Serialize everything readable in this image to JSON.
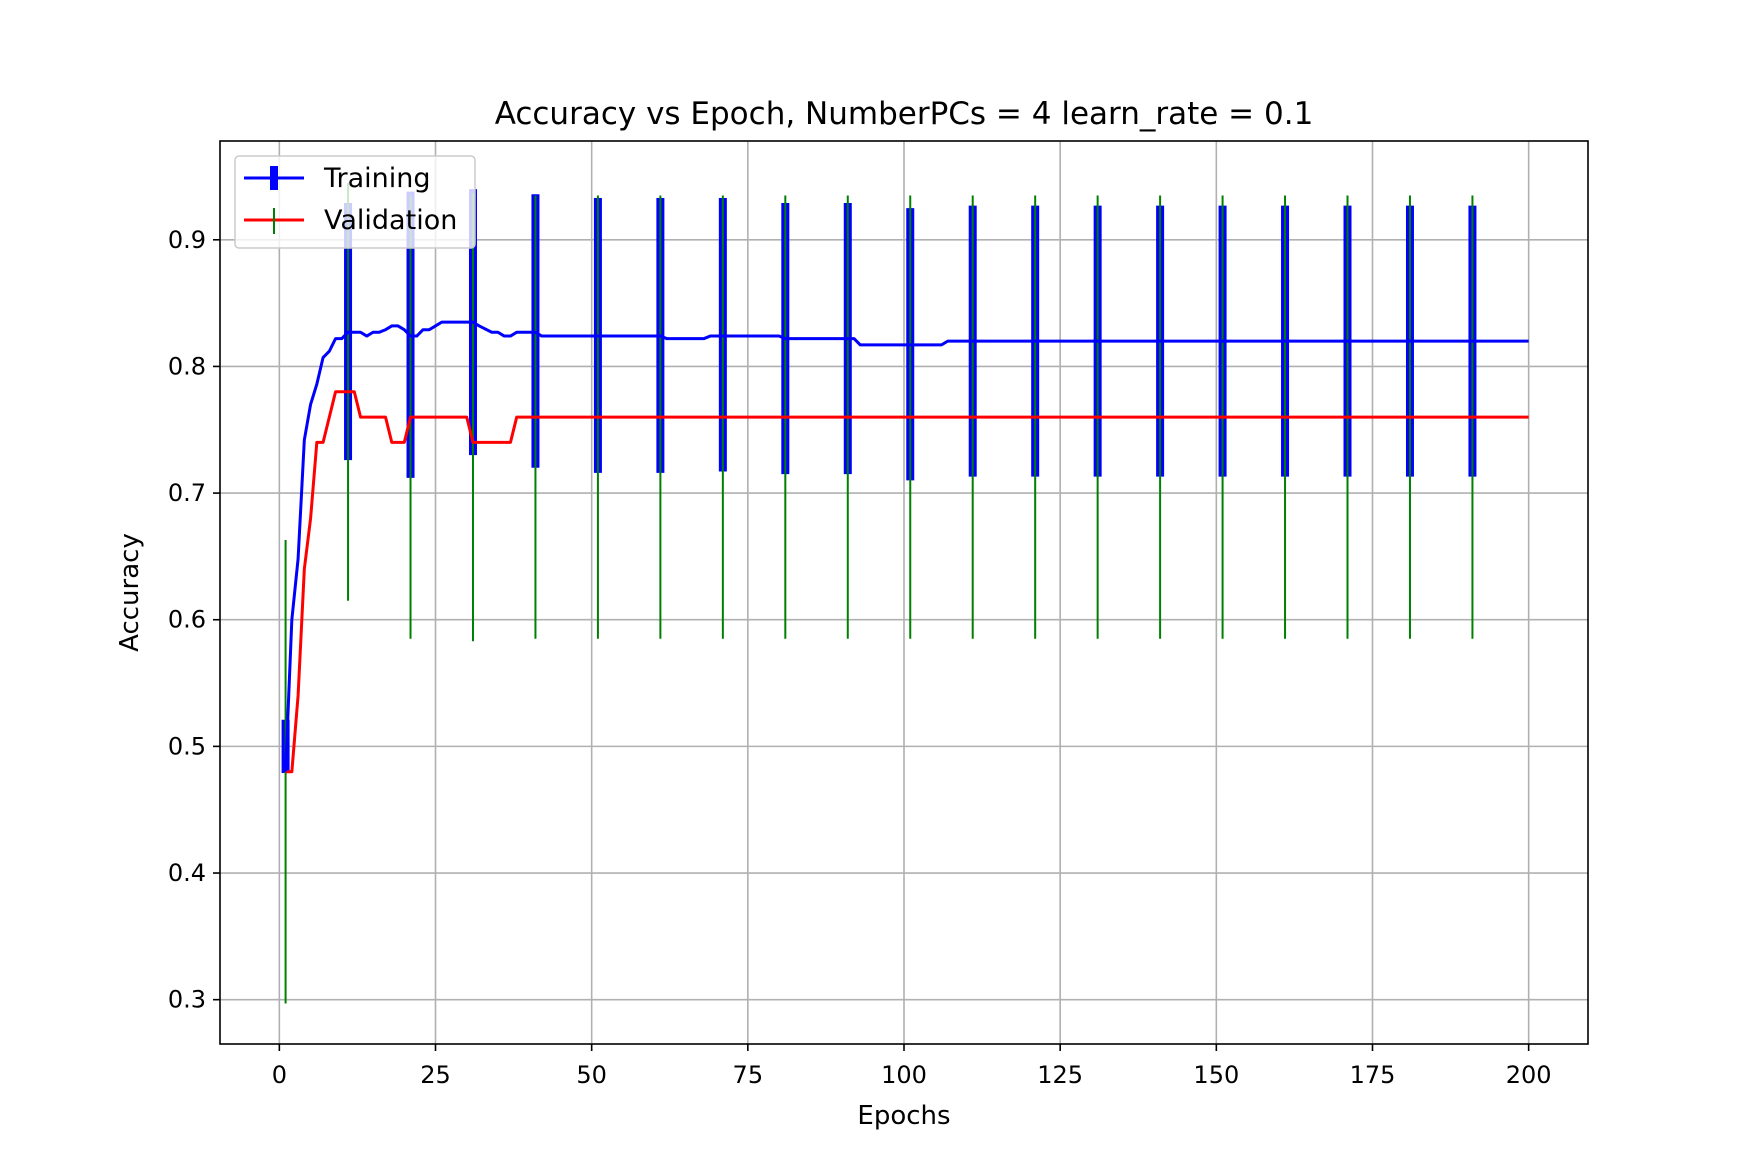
{
  "chart_data": {
    "type": "line",
    "title": "Accuracy vs Epoch, NumberPCs = 4 learn_rate = 0.1",
    "xlabel": "Epochs",
    "ylabel": "Accuracy",
    "xlim": [
      -9.5,
      209.5
    ],
    "ylim": [
      0.265,
      0.978
    ],
    "xticks": [
      0,
      25,
      50,
      75,
      100,
      125,
      150,
      175,
      200
    ],
    "yticks": [
      0.3,
      0.4,
      0.5,
      0.6,
      0.7,
      0.8,
      0.9
    ],
    "xtick_labels": [
      "0",
      "25",
      "50",
      "75",
      "100",
      "125",
      "150",
      "175",
      "200"
    ],
    "ytick_labels": [
      "0.3",
      "0.4",
      "0.5",
      "0.6",
      "0.7",
      "0.8",
      "0.9"
    ],
    "grid": true,
    "legend_position": "upper-left",
    "series": [
      {
        "name": "Training",
        "color": "#0000ff",
        "points": [
          [
            1,
            0.48
          ],
          [
            2,
            0.6
          ],
          [
            3,
            0.648
          ],
          [
            4,
            0.742
          ],
          [
            5,
            0.77
          ],
          [
            6,
            0.786
          ],
          [
            7,
            0.807
          ],
          [
            8,
            0.812
          ],
          [
            9,
            0.822
          ],
          [
            10,
            0.822
          ],
          [
            11,
            0.827
          ],
          [
            13,
            0.827
          ],
          [
            14,
            0.824
          ],
          [
            15,
            0.827
          ],
          [
            16,
            0.827
          ],
          [
            17,
            0.829
          ],
          [
            18,
            0.832
          ],
          [
            19,
            0.832
          ],
          [
            20,
            0.829
          ],
          [
            21,
            0.824
          ],
          [
            22,
            0.824
          ],
          [
            23,
            0.829
          ],
          [
            24,
            0.829
          ],
          [
            25,
            0.832
          ],
          [
            26,
            0.835
          ],
          [
            30,
            0.835
          ],
          [
            31,
            0.835
          ],
          [
            32,
            0.832
          ],
          [
            34,
            0.827
          ],
          [
            35,
            0.827
          ],
          [
            36,
            0.824
          ],
          [
            37,
            0.824
          ],
          [
            38,
            0.827
          ],
          [
            40,
            0.827
          ],
          [
            41,
            0.827
          ],
          [
            42,
            0.824
          ],
          [
            61,
            0.824
          ],
          [
            62,
            0.822
          ],
          [
            68,
            0.822
          ],
          [
            69,
            0.824
          ],
          [
            80,
            0.824
          ],
          [
            81,
            0.822
          ],
          [
            92,
            0.822
          ],
          [
            93,
            0.817
          ],
          [
            106,
            0.817
          ],
          [
            107,
            0.82
          ],
          [
            200,
            0.82
          ]
        ],
        "errorbars": [
          {
            "x": 1,
            "low": 0.479,
            "high": 0.521
          },
          {
            "x": 11,
            "low": 0.726,
            "high": 0.929
          },
          {
            "x": 21,
            "low": 0.712,
            "high": 0.938
          },
          {
            "x": 31,
            "low": 0.73,
            "high": 0.94
          },
          {
            "x": 41,
            "low": 0.72,
            "high": 0.936
          },
          {
            "x": 51,
            "low": 0.716,
            "high": 0.933
          },
          {
            "x": 61,
            "low": 0.716,
            "high": 0.933
          },
          {
            "x": 71,
            "low": 0.717,
            "high": 0.933
          },
          {
            "x": 81,
            "low": 0.715,
            "high": 0.929
          },
          {
            "x": 91,
            "low": 0.715,
            "high": 0.929
          },
          {
            "x": 101,
            "low": 0.71,
            "high": 0.925
          },
          {
            "x": 111,
            "low": 0.713,
            "high": 0.927
          },
          {
            "x": 121,
            "low": 0.713,
            "high": 0.927
          },
          {
            "x": 131,
            "low": 0.713,
            "high": 0.927
          },
          {
            "x": 141,
            "low": 0.713,
            "high": 0.927
          },
          {
            "x": 151,
            "low": 0.713,
            "high": 0.927
          },
          {
            "x": 161,
            "low": 0.713,
            "high": 0.927
          },
          {
            "x": 171,
            "low": 0.713,
            "high": 0.927
          },
          {
            "x": 181,
            "low": 0.713,
            "high": 0.927
          },
          {
            "x": 191,
            "low": 0.713,
            "high": 0.927
          }
        ]
      },
      {
        "name": "Validation",
        "color": "#ff0000",
        "points": [
          [
            1,
            0.48
          ],
          [
            2,
            0.48
          ],
          [
            3,
            0.54
          ],
          [
            4,
            0.64
          ],
          [
            5,
            0.68
          ],
          [
            6,
            0.74
          ],
          [
            7,
            0.74
          ],
          [
            8,
            0.76
          ],
          [
            9,
            0.78
          ],
          [
            12,
            0.78
          ],
          [
            13,
            0.76
          ],
          [
            17,
            0.76
          ],
          [
            18,
            0.74
          ],
          [
            20,
            0.74
          ],
          [
            21,
            0.76
          ],
          [
            29,
            0.76
          ],
          [
            30,
            0.76
          ],
          [
            31,
            0.74
          ],
          [
            37,
            0.74
          ],
          [
            38,
            0.76
          ],
          [
            200,
            0.76
          ]
        ],
        "errorbars": [
          {
            "x": 1,
            "low": 0.297,
            "high": 0.663
          },
          {
            "x": 11,
            "low": 0.615,
            "high": 0.945
          },
          {
            "x": 21,
            "low": 0.585,
            "high": 0.935
          },
          {
            "x": 31,
            "low": 0.583,
            "high": 0.937
          },
          {
            "x": 41,
            "low": 0.585,
            "high": 0.935
          },
          {
            "x": 51,
            "low": 0.585,
            "high": 0.935
          },
          {
            "x": 61,
            "low": 0.585,
            "high": 0.935
          },
          {
            "x": 71,
            "low": 0.585,
            "high": 0.935
          },
          {
            "x": 81,
            "low": 0.585,
            "high": 0.935
          },
          {
            "x": 91,
            "low": 0.585,
            "high": 0.935
          },
          {
            "x": 101,
            "low": 0.585,
            "high": 0.935
          },
          {
            "x": 111,
            "low": 0.585,
            "high": 0.935
          },
          {
            "x": 121,
            "low": 0.585,
            "high": 0.935
          },
          {
            "x": 131,
            "low": 0.585,
            "high": 0.935
          },
          {
            "x": 141,
            "low": 0.585,
            "high": 0.935
          },
          {
            "x": 151,
            "low": 0.585,
            "high": 0.935
          },
          {
            "x": 161,
            "low": 0.585,
            "high": 0.935
          },
          {
            "x": 171,
            "low": 0.585,
            "high": 0.935
          },
          {
            "x": 181,
            "low": 0.585,
            "high": 0.935
          },
          {
            "x": 191,
            "low": 0.585,
            "high": 0.935
          }
        ]
      }
    ],
    "validation_errorbar_color": "#008000",
    "grid_color": "#b0b0b0"
  }
}
